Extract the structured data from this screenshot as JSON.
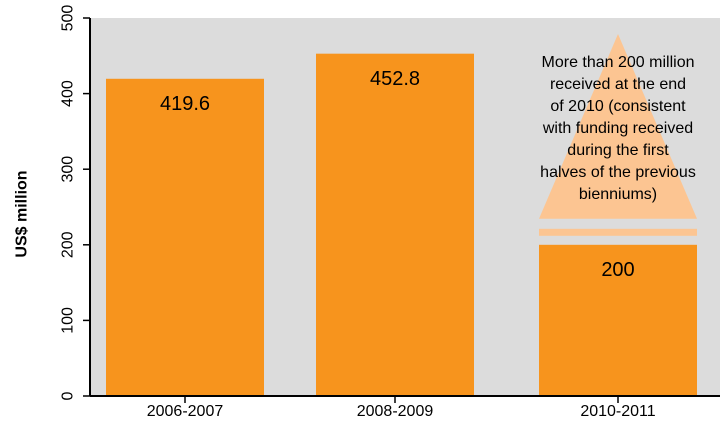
{
  "chart_data": {
    "type": "bar",
    "categories": [
      "2006-2007",
      "2008-2009",
      "2010-2011"
    ],
    "values": [
      419.6,
      452.8,
      200
    ],
    "data_labels": [
      "419.6",
      "452.8",
      "200"
    ],
    "title": "",
    "xlabel": "",
    "ylabel": "US$ million",
    "ylim": [
      0,
      500
    ],
    "yticks": [
      0,
      100,
      200,
      300,
      400,
      500
    ],
    "grid": false,
    "projection": {
      "category": "2010-2011",
      "annotation_lines": [
        "More than 200 million",
        "received at the end",
        "of 2010 (consistent",
        "with funding received",
        "during the first",
        "halves of the previous",
        "bienniums)"
      ]
    },
    "colors": {
      "bar": "#f7941d",
      "projection": "#fcc592",
      "plot_background": "#dcdcdc",
      "axis": "#000000"
    }
  }
}
